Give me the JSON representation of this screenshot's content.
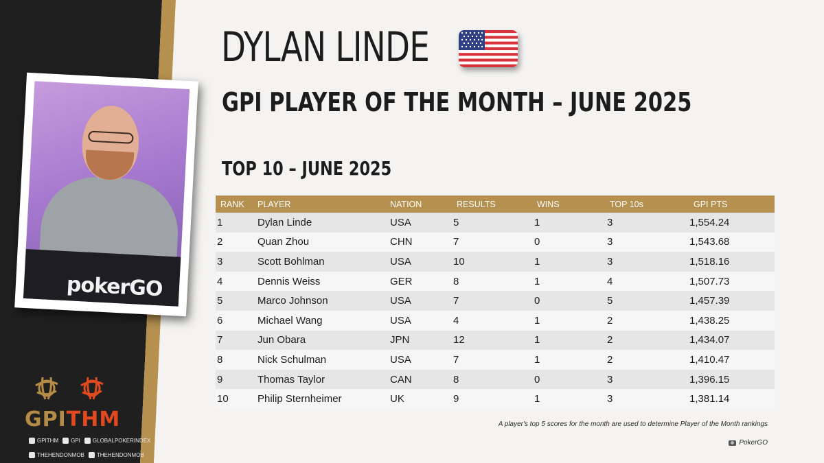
{
  "header": {
    "player_name": "DYLAN LINDE",
    "subtitle": "GPI PLAYER OF THE MONTH – JUNE 2025",
    "flag_icon": "usa-flag-icon"
  },
  "section_title": "TOP 10 – JUNE 2025",
  "table": {
    "columns": [
      "RANK",
      "PLAYER",
      "NATION",
      "RESULTS",
      "WINS",
      "TOP 10s",
      "GPI PTS"
    ],
    "rows": [
      [
        "1",
        "Dylan Linde",
        "USA",
        "5",
        "1",
        "3",
        "1,554.24"
      ],
      [
        "2",
        "Quan Zhou",
        "CHN",
        "7",
        "0",
        "3",
        "1,543.68"
      ],
      [
        "3",
        "Scott Bohlman",
        "USA",
        "10",
        "1",
        "3",
        "1,518.16"
      ],
      [
        "4",
        "Dennis Weiss",
        "GER",
        "8",
        "1",
        "4",
        "1,507.73"
      ],
      [
        "5",
        "Marco Johnson",
        "USA",
        "7",
        "0",
        "5",
        "1,457.39"
      ],
      [
        "6",
        "Michael Wang",
        "USA",
        "4",
        "1",
        "2",
        "1,438.25"
      ],
      [
        "7",
        "Jun Obara",
        "JPN",
        "12",
        "1",
        "2",
        "1,434.07"
      ],
      [
        "8",
        "Nick Schulman",
        "USA",
        "7",
        "1",
        "2",
        "1,410.47"
      ],
      [
        "9",
        "Thomas Taylor",
        "CAN",
        "8",
        "0",
        "3",
        "1,396.15"
      ],
      [
        "10",
        "Philip Sternheimer",
        "UK",
        "9",
        "1",
        "3",
        "1,381.14"
      ]
    ]
  },
  "footnote": "A player's top 5 scores for the month are used to determine Player of the Month rankings",
  "photo_credit": "PokerGO",
  "photo": {
    "logo_text": "pokerGO"
  },
  "logo": {
    "gpi": "GPI",
    "thm": "THM"
  },
  "socials": {
    "row1": [
      "GPITHM",
      "GPI",
      "GLOBALPOKERINDEX"
    ],
    "row2": [
      "THEHENDONMOB",
      "THEHENDONMOB"
    ]
  },
  "colors": {
    "dark_panel": "#1f1f1f",
    "gold": "#b5904f",
    "orange": "#e04a1e",
    "row_odd": "#e6e6e6",
    "row_even": "#f6f6f6"
  }
}
